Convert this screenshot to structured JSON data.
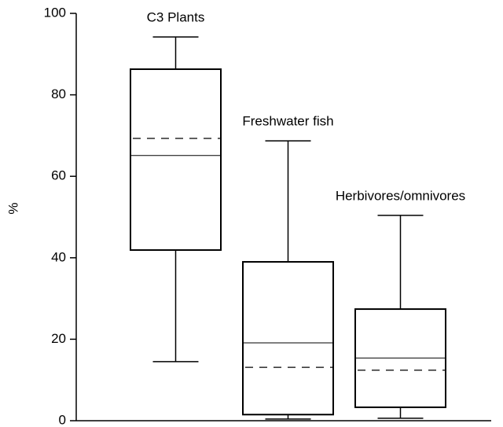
{
  "chart_data": {
    "type": "box",
    "ylabel": "%",
    "ylim": [
      0,
      100
    ],
    "yticks": [
      0,
      20,
      40,
      60,
      80,
      100
    ],
    "boxes": [
      {
        "name": "C3 Plants",
        "min": 14.5,
        "q1": 41.9,
        "median": 65.1,
        "mean": 69.3,
        "q3": 86.3,
        "max": 94.2
      },
      {
        "name": "Freshwater fish",
        "min": 0.4,
        "q1": 1.5,
        "median": 19.1,
        "mean": 13.1,
        "q3": 39.0,
        "max": 68.7
      },
      {
        "name": "Herbivores/omnivores",
        "min": 0.6,
        "q1": 3.3,
        "median": 15.4,
        "mean": 12.4,
        "q3": 27.4,
        "max": 50.4
      }
    ]
  }
}
